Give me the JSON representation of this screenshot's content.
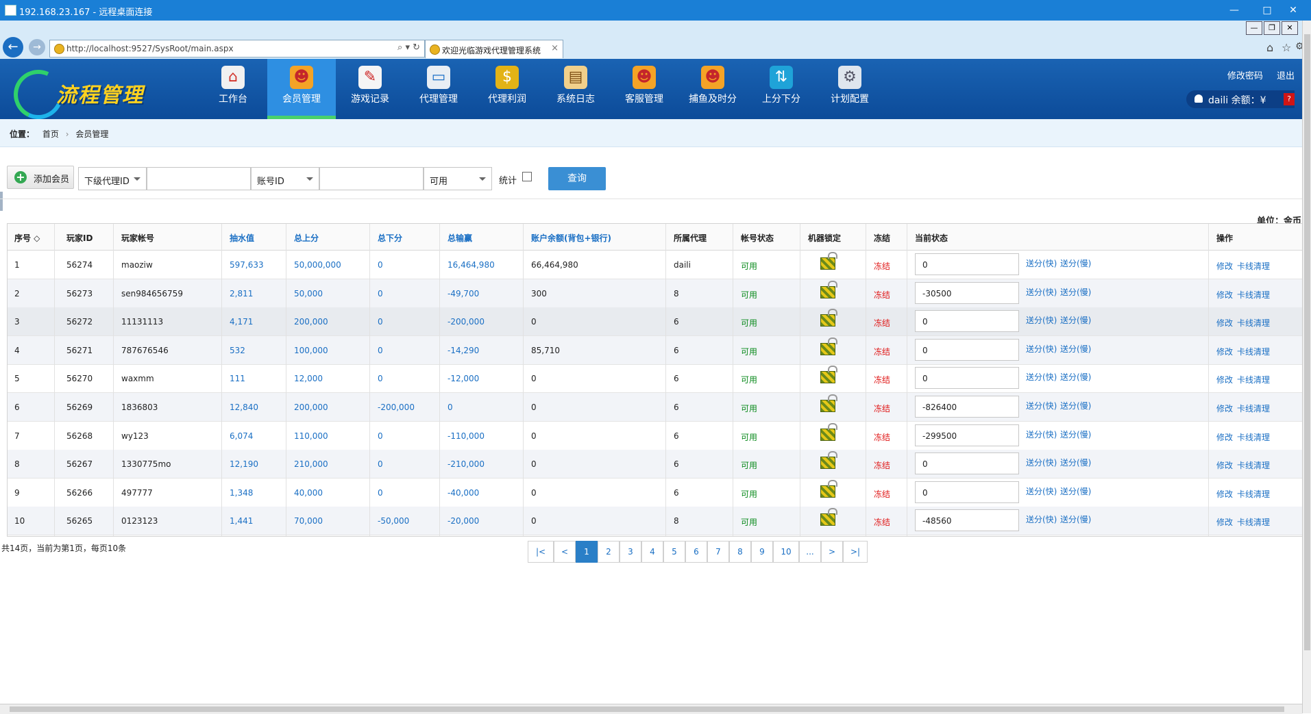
{
  "rdp": {
    "title": "192.168.23.167 - 远程桌面连接",
    "min": "—",
    "max": "□",
    "close": "✕"
  },
  "browser": {
    "url": "http://localhost:9527/SysRoot/main.aspx",
    "tab_title": "欢迎光临游戏代理管理系统",
    "tab_close": "×",
    "addr_tools": "⌕ ▾ ↻",
    "home_icon": "⌂",
    "star_icon": "☆",
    "gear_icon": "⚙"
  },
  "app": {
    "logo_text": "流程管理",
    "nav": [
      {
        "label": "工作台",
        "icon": "home-icon"
      },
      {
        "label": "会员管理",
        "icon": "users-icon",
        "active": true
      },
      {
        "label": "游戏记录",
        "icon": "pen-icon"
      },
      {
        "label": "代理管理",
        "icon": "monitor-icon"
      },
      {
        "label": "代理利润",
        "icon": "money-bag-icon"
      },
      {
        "label": "系统日志",
        "icon": "clipboard-icon"
      },
      {
        "label": "客服管理",
        "icon": "support-icon"
      },
      {
        "label": "捕鱼及时分",
        "icon": "fish-icon"
      },
      {
        "label": "上分下分",
        "icon": "exchange-icon"
      },
      {
        "label": "计划配置",
        "icon": "gears-icon"
      }
    ],
    "top_links": {
      "change_password": "修改密码",
      "logout": "退出"
    },
    "user": {
      "text": "daili 余额：¥",
      "balance": "?"
    }
  },
  "breadcrumb": {
    "label": "位置：",
    "home": "首页",
    "sep": "›",
    "current": "会员管理"
  },
  "toolbar": {
    "add_label": "添加会员",
    "agent_select": "下级代理ID",
    "account_select": "账号ID",
    "status_select": "可用",
    "stat_label": "统计",
    "query_label": "查询"
  },
  "unit_label": "单位：金币",
  "table": {
    "headers": {
      "no": "序号 ◇",
      "player_id": "玩家ID",
      "account": "玩家帐号",
      "rake": "抽水值",
      "total_in": "总上分",
      "total_out": "总下分",
      "win_loss": "总输赢",
      "balance": "账户余额(背包+银行)",
      "agent": "所属代理",
      "status": "帐号状态",
      "machine_lock": "机器锁定",
      "freeze": "冻结",
      "current": "当前状态",
      "ops": "操作"
    },
    "rows": [
      {
        "no": "1",
        "id": "56274",
        "account": "maoziw",
        "rake": "597,633",
        "in": "50,000,000",
        "out": "0",
        "wl": "16,464,980",
        "bal": "66,464,980",
        "agent": "daili",
        "status": "可用",
        "freeze": "冻结",
        "cur": "0"
      },
      {
        "no": "2",
        "id": "56273",
        "account": "sen984656759",
        "rake": "2,811",
        "in": "50,000",
        "out": "0",
        "wl": "-49,700",
        "bal": "300",
        "agent": "8",
        "status": "可用",
        "freeze": "冻结",
        "cur": "-30500"
      },
      {
        "no": "3",
        "id": "56272",
        "account": "11131113",
        "rake": "4,171",
        "in": "200,000",
        "out": "0",
        "wl": "-200,000",
        "bal": "0",
        "agent": "6",
        "status": "可用",
        "freeze": "冻结",
        "cur": "0"
      },
      {
        "no": "4",
        "id": "56271",
        "account": "787676546",
        "rake": "532",
        "in": "100,000",
        "out": "0",
        "wl": "-14,290",
        "bal": "85,710",
        "agent": "6",
        "status": "可用",
        "freeze": "冻结",
        "cur": "0"
      },
      {
        "no": "5",
        "id": "56270",
        "account": "waxmm",
        "rake": "111",
        "in": "12,000",
        "out": "0",
        "wl": "-12,000",
        "bal": "0",
        "agent": "6",
        "status": "可用",
        "freeze": "冻结",
        "cur": "0"
      },
      {
        "no": "6",
        "id": "56269",
        "account": "1836803",
        "rake": "12,840",
        "in": "200,000",
        "out": "-200,000",
        "wl": "0",
        "bal": "0",
        "agent": "6",
        "status": "可用",
        "freeze": "冻结",
        "cur": "-826400"
      },
      {
        "no": "7",
        "id": "56268",
        "account": "wy123",
        "rake": "6,074",
        "in": "110,000",
        "out": "0",
        "wl": "-110,000",
        "bal": "0",
        "agent": "6",
        "status": "可用",
        "freeze": "冻结",
        "cur": "-299500"
      },
      {
        "no": "8",
        "id": "56267",
        "account": "1330775mo",
        "rake": "12,190",
        "in": "210,000",
        "out": "0",
        "wl": "-210,000",
        "bal": "0",
        "agent": "6",
        "status": "可用",
        "freeze": "冻结",
        "cur": "0"
      },
      {
        "no": "9",
        "id": "56266",
        "account": "497777",
        "rake": "1,348",
        "in": "40,000",
        "out": "0",
        "wl": "-40,000",
        "bal": "0",
        "agent": "6",
        "status": "可用",
        "freeze": "冻结",
        "cur": "0"
      },
      {
        "no": "10",
        "id": "56265",
        "account": "0123123",
        "rake": "1,441",
        "in": "70,000",
        "out": "-50,000",
        "wl": "-20,000",
        "bal": "0",
        "agent": "8",
        "status": "可用",
        "freeze": "冻结",
        "cur": "-48560"
      }
    ],
    "send_fast": "送分(快)",
    "send_slow": "送分(慢)",
    "edit": "修改",
    "kick": "卡线清理"
  },
  "pagination": {
    "info": "共14页，当前为第1页，每页10条",
    "buttons": [
      "|<",
      "<",
      "1",
      "2",
      "3",
      "4",
      "5",
      "6",
      "7",
      "8",
      "9",
      "10",
      "...",
      ">",
      ">|"
    ],
    "active": "1"
  }
}
